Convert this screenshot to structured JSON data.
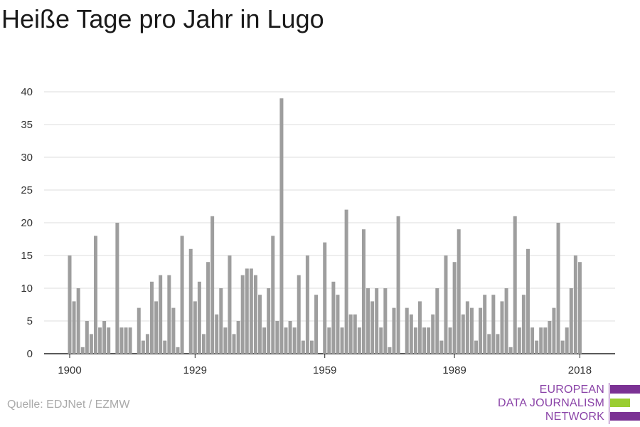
{
  "title": "Heiße Tage pro Jahr in Lugo",
  "source": "Quelle: EDJNet / EZMW",
  "logo": {
    "lines": [
      "EUROPEAN",
      "DATA JOURNALISM",
      "NETWORK"
    ],
    "colors": [
      "#7b3294",
      "#9acd32",
      "#7b3294"
    ]
  },
  "chart_data": {
    "type": "bar",
    "title": "Heiße Tage pro Jahr in Lugo",
    "xlabel": "",
    "ylabel": "",
    "x_start": 1900,
    "x_end": 2018,
    "x_ticks": [
      1900,
      1929,
      1959,
      1989,
      2018
    ],
    "y_ticks": [
      0,
      5,
      10,
      15,
      20,
      25,
      30,
      35,
      40
    ],
    "ylim": [
      0,
      40
    ],
    "grid": true,
    "bar_color": "#9e9e9e",
    "years": [
      1900,
      1901,
      1902,
      1903,
      1904,
      1905,
      1906,
      1907,
      1908,
      1909,
      1910,
      1911,
      1912,
      1913,
      1914,
      1915,
      1916,
      1917,
      1918,
      1919,
      1920,
      1921,
      1922,
      1923,
      1924,
      1925,
      1926,
      1927,
      1928,
      1929,
      1930,
      1931,
      1932,
      1933,
      1934,
      1935,
      1936,
      1937,
      1938,
      1939,
      1940,
      1941,
      1942,
      1943,
      1944,
      1945,
      1946,
      1947,
      1948,
      1949,
      1950,
      1951,
      1952,
      1953,
      1954,
      1955,
      1956,
      1957,
      1958,
      1959,
      1960,
      1961,
      1962,
      1963,
      1964,
      1965,
      1966,
      1967,
      1968,
      1969,
      1970,
      1971,
      1972,
      1973,
      1974,
      1975,
      1976,
      1977,
      1978,
      1979,
      1980,
      1981,
      1982,
      1983,
      1984,
      1985,
      1986,
      1987,
      1988,
      1989,
      1990,
      1991,
      1992,
      1993,
      1994,
      1995,
      1996,
      1997,
      1998,
      1999,
      2000,
      2001,
      2002,
      2003,
      2004,
      2005,
      2006,
      2007,
      2008,
      2009,
      2010,
      2011,
      2012,
      2013,
      2014,
      2015,
      2016,
      2017,
      2018
    ],
    "values": [
      15,
      8,
      10,
      1,
      5,
      3,
      18,
      4,
      5,
      4,
      0,
      20,
      4,
      4,
      4,
      0,
      7,
      2,
      3,
      11,
      8,
      12,
      2,
      12,
      7,
      1,
      18,
      0,
      16,
      8,
      11,
      3,
      14,
      21,
      6,
      10,
      4,
      15,
      3,
      5,
      12,
      13,
      13,
      12,
      9,
      4,
      10,
      18,
      5,
      39,
      4,
      5,
      4,
      12,
      2,
      15,
      2,
      9,
      0,
      17,
      4,
      11,
      9,
      4,
      22,
      6,
      6,
      4,
      19,
      10,
      8,
      10,
      4,
      10,
      1,
      7,
      21,
      0,
      7,
      6,
      4,
      8,
      4,
      4,
      6,
      10,
      2,
      15,
      4,
      14,
      19,
      6,
      8,
      7,
      2,
      7,
      9,
      3,
      9,
      3,
      8,
      10,
      1,
      21,
      4,
      9,
      16,
      4,
      2,
      4,
      4,
      5,
      7,
      20,
      2,
      4,
      10,
      15,
      14
    ]
  }
}
